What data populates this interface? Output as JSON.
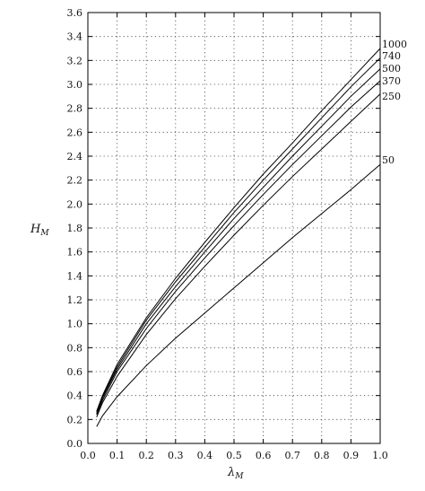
{
  "chart_data": {
    "type": "line",
    "xlabel_main": "λ",
    "xlabel_sub": "M",
    "ylabel_main": "H",
    "ylabel_sub": "M",
    "xlim": [
      0.0,
      1.0
    ],
    "ylim": [
      0.0,
      3.6
    ],
    "x_ticks": [
      "0.0",
      "0.1",
      "0.2",
      "0.3",
      "0.4",
      "0.5",
      "0.6",
      "0.7",
      "0.8",
      "0.9",
      "1.0"
    ],
    "y_ticks": [
      "0.0",
      "0.2",
      "0.4",
      "0.6",
      "0.8",
      "1.0",
      "1.2",
      "1.4",
      "1.6",
      "1.8",
      "2.0",
      "2.2",
      "2.4",
      "2.6",
      "2.8",
      "3.0",
      "3.2",
      "3.4",
      "3.6"
    ],
    "grid": true,
    "series": [
      {
        "name": "1000",
        "x": [
          0.03,
          0.05,
          0.1,
          0.2,
          0.3,
          0.4,
          0.5,
          0.6,
          0.7,
          0.8,
          0.9,
          1.0
        ],
        "y": [
          0.27,
          0.4,
          0.66,
          1.05,
          1.38,
          1.68,
          1.97,
          2.25,
          2.51,
          2.78,
          3.04,
          3.3
        ]
      },
      {
        "name": "740",
        "x": [
          0.03,
          0.05,
          0.1,
          0.2,
          0.3,
          0.4,
          0.5,
          0.6,
          0.7,
          0.8,
          0.9,
          1.0
        ],
        "y": [
          0.26,
          0.39,
          0.64,
          1.03,
          1.35,
          1.64,
          1.93,
          2.2,
          2.46,
          2.72,
          2.98,
          3.22
        ]
      },
      {
        "name": "500",
        "x": [
          0.03,
          0.05,
          0.1,
          0.2,
          0.3,
          0.4,
          0.5,
          0.6,
          0.7,
          0.8,
          0.9,
          1.0
        ],
        "y": [
          0.25,
          0.38,
          0.62,
          1.0,
          1.31,
          1.6,
          1.88,
          2.14,
          2.4,
          2.65,
          2.9,
          3.13
        ]
      },
      {
        "name": "370",
        "x": [
          0.03,
          0.05,
          0.1,
          0.2,
          0.3,
          0.4,
          0.5,
          0.6,
          0.7,
          0.8,
          0.9,
          1.0
        ],
        "y": [
          0.24,
          0.36,
          0.6,
          0.96,
          1.27,
          1.55,
          1.82,
          2.08,
          2.33,
          2.57,
          2.81,
          3.03
        ]
      },
      {
        "name": "250",
        "x": [
          0.03,
          0.05,
          0.1,
          0.2,
          0.3,
          0.4,
          0.5,
          0.6,
          0.7,
          0.8,
          0.9,
          1.0
        ],
        "y": [
          0.22,
          0.34,
          0.56,
          0.91,
          1.21,
          1.48,
          1.74,
          1.99,
          2.23,
          2.46,
          2.69,
          2.92
        ]
      },
      {
        "name": "50",
        "x": [
          0.03,
          0.05,
          0.1,
          0.2,
          0.3,
          0.4,
          0.5,
          0.6,
          0.7,
          0.8,
          0.9,
          1.0
        ],
        "y": [
          0.14,
          0.23,
          0.39,
          0.65,
          0.88,
          1.09,
          1.3,
          1.51,
          1.72,
          1.92,
          2.12,
          2.33
        ]
      }
    ]
  }
}
